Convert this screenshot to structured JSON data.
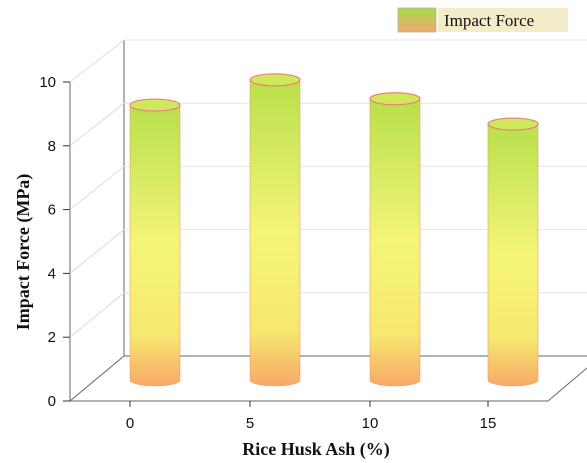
{
  "chart_data": {
    "type": "bar",
    "style": "3d-cylinder",
    "categories": [
      "0",
      "5",
      "10",
      "15"
    ],
    "series": [
      {
        "name": "Impact Force",
        "values": [
          8.7,
          9.5,
          8.9,
          8.1
        ]
      }
    ],
    "xlabel": "Rice Husk Ash (%)",
    "ylabel": "Impact Force (MPa)",
    "ylim": [
      0,
      10
    ],
    "yticks": [
      "0",
      "2",
      "4",
      "6",
      "8",
      "10"
    ],
    "grid": true,
    "legend_position": "top-right",
    "colors": {
      "top": "#b8e04a",
      "middle": "#f2f27a",
      "bottom": "#f7a868",
      "rim": "#e88080"
    }
  }
}
